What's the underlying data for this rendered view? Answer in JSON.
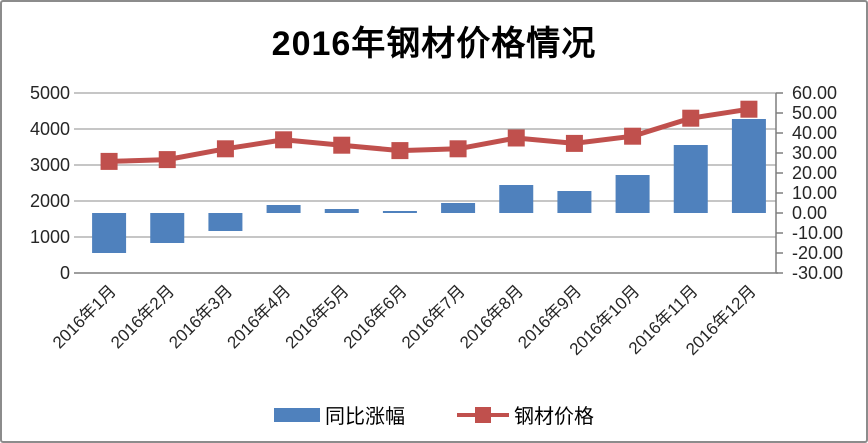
{
  "title": "2016年钢材价格情况",
  "colors": {
    "bar_blue": "#4F81BD",
    "line_red": "#C0504D",
    "gridline": "#A3A3A3",
    "axis_line": "#7F7F7F",
    "axis_text": "#262626",
    "frame_border": "#8C8C8C"
  },
  "chart_data": {
    "type": "bar+line combo",
    "title": "2016年钢材价格情况",
    "categories": [
      "2016年1月",
      "2016年2月",
      "2016年3月",
      "2016年4月",
      "2016年5月",
      "2016年6月",
      "2016年7月",
      "2016年8月",
      "2016年9月",
      "2016年10月",
      "2016年11月",
      "2016年12月"
    ],
    "series": [
      {
        "name": "同比涨幅",
        "type": "bar",
        "axis": "right",
        "color": "#4F81BD",
        "values": [
          -20,
          -15,
          -9,
          4,
          2,
          1,
          5,
          14,
          11,
          19,
          34,
          47
        ]
      },
      {
        "name": "钢材价格",
        "type": "line",
        "axis": "left",
        "color": "#C0504D",
        "marker": "square",
        "values": [
          3100,
          3150,
          3450,
          3700,
          3550,
          3400,
          3450,
          3750,
          3600,
          3800,
          4300,
          4550
        ]
      }
    ],
    "left_axis": {
      "min": 0,
      "max": 5000,
      "step": 1000,
      "tick_labels": [
        "5000",
        "4000",
        "3000",
        "2000",
        "1000",
        "0"
      ]
    },
    "right_axis": {
      "min": -30,
      "max": 60,
      "step": 10,
      "tick_labels": [
        "60.00",
        "50.00",
        "40.00",
        "30.00",
        "20.00",
        "10.00",
        "0.00",
        "-10.00",
        "-20.00",
        "-30.00"
      ]
    },
    "grid": "horizontal",
    "legend_position": "bottom",
    "x_label_rotation": -45
  },
  "legend": {
    "items": [
      {
        "label": "同比涨幅"
      },
      {
        "label": "钢材价格"
      }
    ]
  }
}
